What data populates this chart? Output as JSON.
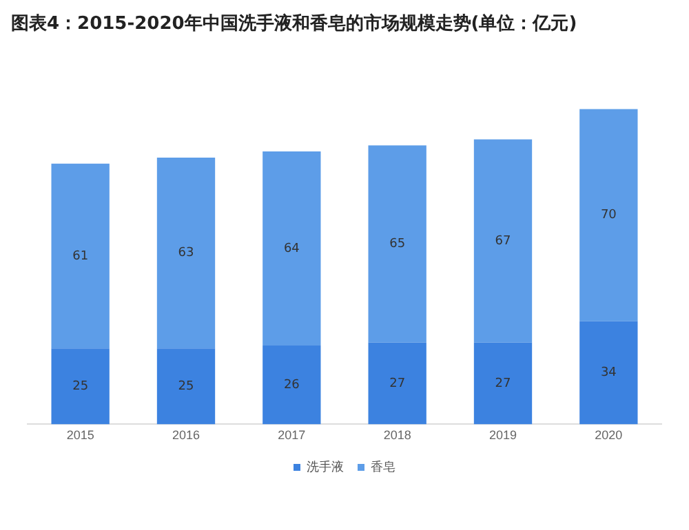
{
  "chart_data": {
    "type": "bar",
    "title": "图表4：2015-2020年中国洗手液和香皂的市场规模走势(单位：亿元)",
    "categories": [
      "2015",
      "2016",
      "2017",
      "2018",
      "2019",
      "2020"
    ],
    "stacked": true,
    "data_labels": true,
    "legend": "bottom",
    "grid": false,
    "tick_labels": "x",
    "series": [
      {
        "name": "洗手液",
        "color": "#3c82e0",
        "values": [
          25,
          25,
          26,
          27,
          27,
          34
        ]
      },
      {
        "name": "香皂",
        "color": "#5d9de8",
        "values": [
          61,
          63,
          64,
          65,
          67,
          70
        ]
      }
    ]
  }
}
